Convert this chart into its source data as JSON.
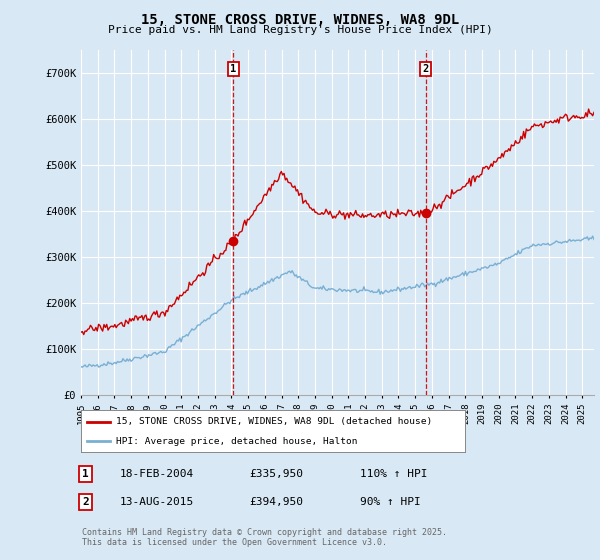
{
  "title": "15, STONE CROSS DRIVE, WIDNES, WA8 9DL",
  "subtitle": "Price paid vs. HM Land Registry's House Price Index (HPI)",
  "ylabel_ticks": [
    "£0",
    "£100K",
    "£200K",
    "£300K",
    "£400K",
    "£500K",
    "£600K",
    "£700K"
  ],
  "ytick_values": [
    0,
    100000,
    200000,
    300000,
    400000,
    500000,
    600000,
    700000
  ],
  "ylim": [
    0,
    750000
  ],
  "xlim_start": 1995.0,
  "xlim_end": 2025.7,
  "background_color": "#d8e8f4",
  "plot_bg_color": "#d8e8f4",
  "grid_color": "#ffffff",
  "red_line_color": "#cc0000",
  "blue_line_color": "#7aafd4",
  "marker1_date_x": 2004.12,
  "marker1_price": 335950,
  "marker2_date_x": 2015.62,
  "marker2_price": 394950,
  "legend1_text": "15, STONE CROSS DRIVE, WIDNES, WA8 9DL (detached house)",
  "legend2_text": "HPI: Average price, detached house, Halton",
  "footnote1_date": "18-FEB-2004",
  "footnote1_price": "£335,950",
  "footnote1_hpi": "110% ↑ HPI",
  "footnote2_date": "13-AUG-2015",
  "footnote2_price": "£394,950",
  "footnote2_hpi": "90% ↑ HPI",
  "copyright_text": "Contains HM Land Registry data © Crown copyright and database right 2025.\nThis data is licensed under the Open Government Licence v3.0."
}
